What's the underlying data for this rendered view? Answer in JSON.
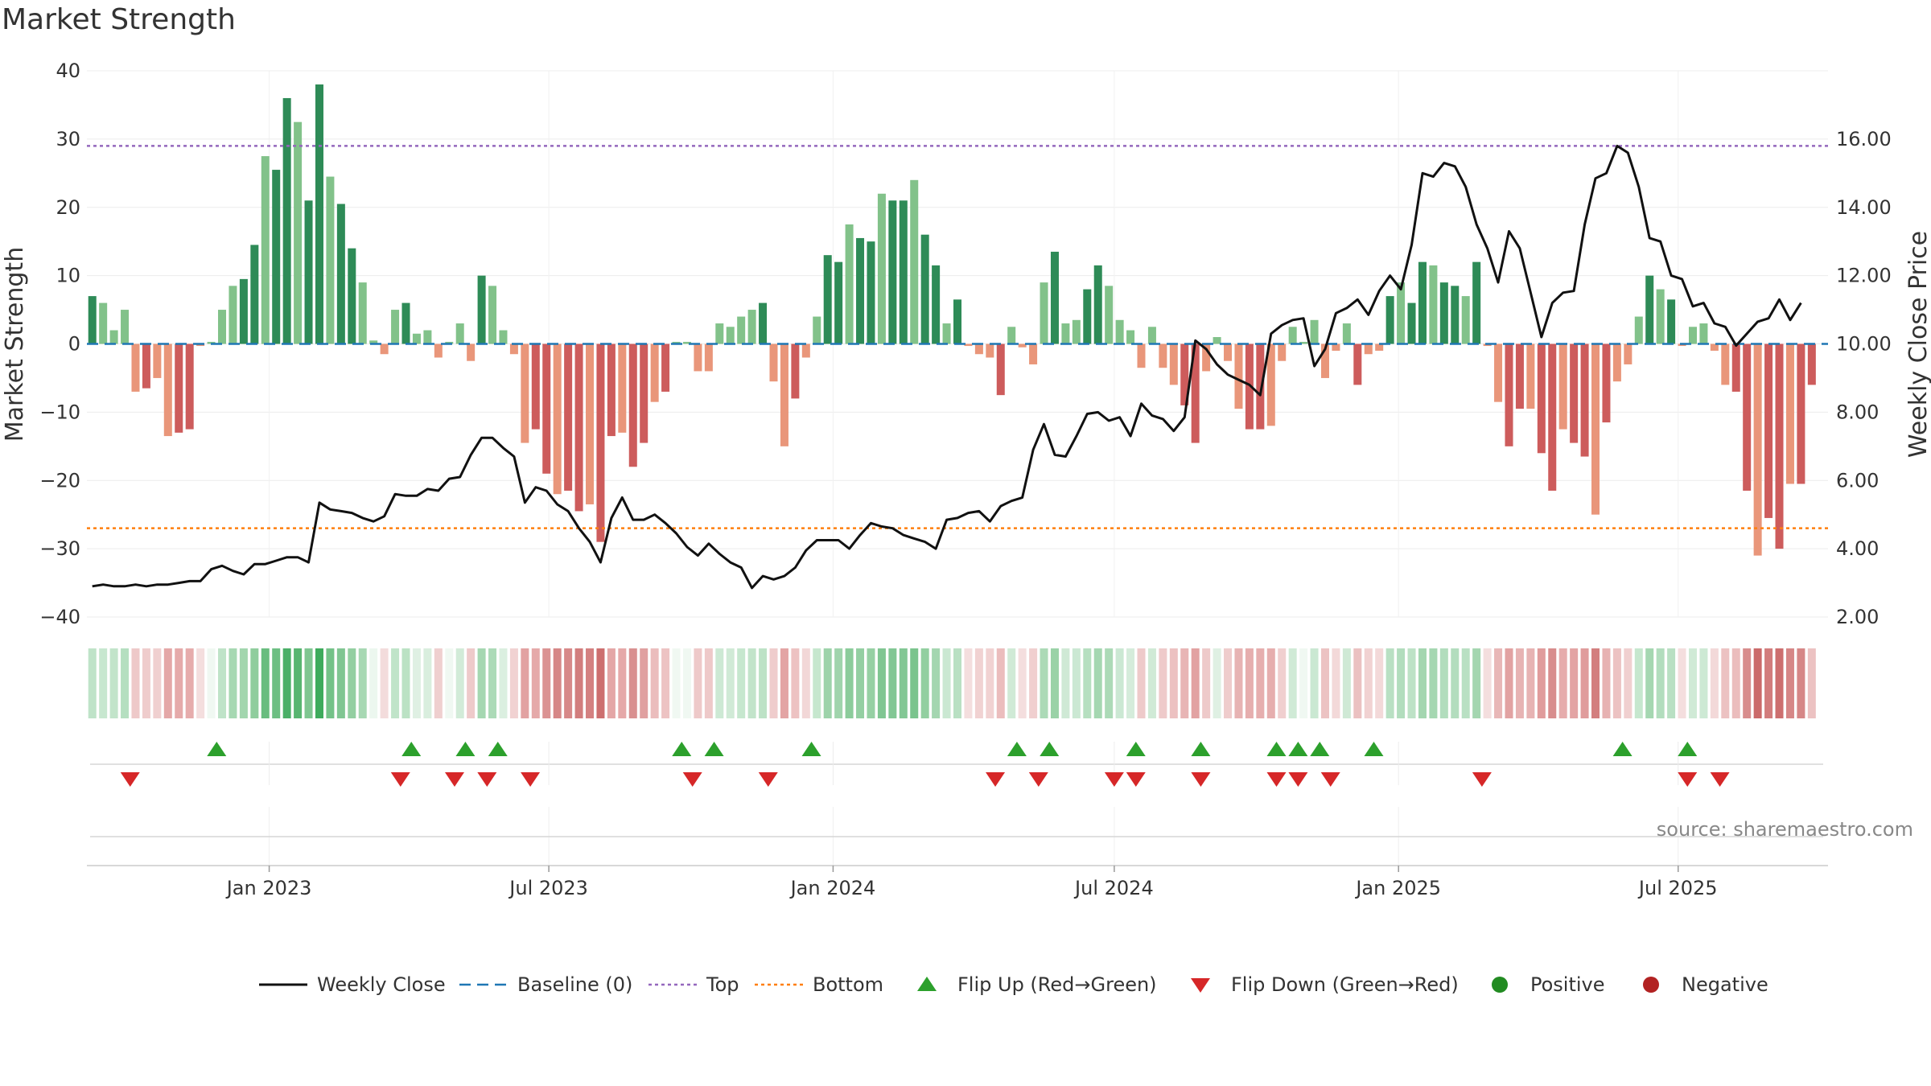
{
  "chart_data": {
    "type": "bar",
    "title": "Market Strength",
    "ylabel": "Market Strength",
    "ylabel_right": "Weekly Close Price",
    "ylim": [
      -40,
      40
    ],
    "ylim_right": [
      2,
      18
    ],
    "y_ticks": [
      40,
      30,
      20,
      10,
      0,
      -10,
      -20,
      -30,
      -40
    ],
    "y_tick_labels": [
      "40",
      "30",
      "20",
      "10",
      "0",
      "−10",
      "−20",
      "−30",
      "−40"
    ],
    "y_right_ticks": [
      16,
      14,
      12,
      10,
      8,
      6,
      4,
      2
    ],
    "y_right_tick_labels": [
      "16.00",
      "14.00",
      "12.00",
      "10.00",
      "8.00",
      "6.00",
      "4.00",
      "2.00"
    ],
    "x_start": "2022-09-05",
    "x_end": "2025-10-06",
    "x_ticks": [
      "2023-01-01",
      "2023-07-01",
      "2024-01-01",
      "2024-07-01",
      "2025-01-01",
      "2025-07-01"
    ],
    "x_tick_labels": [
      "Jan 2023",
      "Jul 2023",
      "Jan 2024",
      "Jul 2024",
      "Jan 2025",
      "Jul 2025"
    ],
    "grid": true,
    "top_line": 29,
    "bottom_line": -27,
    "baseline": 0,
    "source": "source: sharemaestro.com",
    "colors": {
      "pos_dark": "#2e8b57",
      "pos_light": "#82c28a",
      "neg_dark": "#cd5c5c",
      "neg_light": "#e9967a",
      "price_line": "#111111",
      "baseline": "#1f77b4",
      "top": "#9467bd",
      "bottom": "#ff7f0e",
      "flip_up": "#2ca02c",
      "flip_down": "#d62728",
      "positive": "#228b22",
      "negative": "#b22222"
    },
    "strength": [
      7,
      6,
      2,
      5,
      -7,
      -6.5,
      -5,
      -13.5,
      -13,
      -12.5,
      -0.3,
      0.3,
      5,
      8.5,
      9.5,
      14.5,
      27.5,
      25.5,
      36,
      32.5,
      21,
      38,
      24.5,
      20.5,
      14,
      9,
      0.5,
      -1.5,
      5,
      6,
      1.5,
      2,
      -2,
      0.3,
      3,
      -2.5,
      10,
      8.5,
      2,
      -1.5,
      -14.5,
      -12.5,
      -19,
      -22,
      -21.5,
      -24.5,
      -23.5,
      -29,
      -13.5,
      -13,
      -18,
      -14.5,
      -8.5,
      -7,
      0.3,
      0.3,
      -4,
      -4,
      3,
      2.5,
      4,
      5,
      6,
      -5.5,
      -15,
      -8,
      -2,
      4,
      13,
      12,
      17.5,
      15.5,
      15,
      22,
      21,
      21,
      24,
      16,
      11.5,
      3,
      6.5,
      -0.3,
      -1.5,
      -2,
      -7.5,
      2.5,
      -0.5,
      -3,
      9,
      13.5,
      3,
      3.5,
      8,
      11.5,
      8.5,
      3.5,
      2,
      -3.5,
      2.5,
      -3.5,
      -6,
      -9,
      -14.5,
      -4,
      1,
      -2.5,
      -9.5,
      -12.5,
      -12.5,
      -12,
      -2.5,
      2.5,
      0.3,
      3.5,
      -5,
      -1,
      3,
      -6,
      -1.5,
      -1,
      7,
      9,
      6,
      12,
      11.5,
      9,
      8.5,
      7,
      12,
      -0.3,
      -8.5,
      -15,
      -9.5,
      -9.5,
      -16,
      -21.5,
      -12.5,
      -14.5,
      -16.5,
      -25,
      -11.5,
      -5.5,
      -3,
      4,
      10,
      8,
      6.5,
      -0.3,
      2.5,
      3,
      -1,
      -6,
      -7,
      -21.5,
      -31,
      -25.5,
      -30,
      -20.5,
      -20.5,
      -6
    ],
    "close": [
      2.9,
      2.95,
      2.9,
      2.9,
      2.95,
      2.9,
      2.95,
      2.95,
      3.0,
      3.05,
      3.05,
      3.4,
      3.5,
      3.35,
      3.25,
      3.55,
      3.55,
      3.65,
      3.75,
      3.75,
      3.6,
      5.35,
      5.15,
      5.1,
      5.05,
      4.9,
      4.8,
      4.95,
      5.6,
      5.55,
      5.55,
      5.75,
      5.7,
      6.05,
      6.1,
      6.75,
      7.25,
      7.25,
      6.95,
      6.7,
      5.35,
      5.8,
      5.7,
      5.3,
      5.1,
      4.6,
      4.2,
      3.6,
      4.9,
      5.5,
      4.85,
      4.85,
      5.0,
      4.75,
      4.45,
      4.05,
      3.8,
      4.15,
      3.85,
      3.6,
      3.45,
      2.85,
      3.2,
      3.1,
      3.2,
      3.45,
      3.95,
      4.25,
      4.25,
      4.25,
      4.0,
      4.4,
      4.75,
      4.65,
      4.6,
      4.4,
      4.3,
      4.2,
      4.0,
      4.85,
      4.9,
      5.05,
      5.1,
      4.8,
      5.25,
      5.4,
      5.5,
      6.9,
      7.65,
      6.75,
      6.7,
      7.3,
      7.95,
      8.0,
      7.75,
      7.85,
      7.3,
      8.25,
      7.9,
      7.8,
      7.45,
      7.85,
      10.1,
      9.85,
      9.4,
      9.1,
      8.95,
      8.8,
      8.5,
      10.3,
      10.55,
      10.7,
      10.75,
      9.35,
      9.85,
      10.9,
      11.05,
      11.3,
      10.85,
      11.55,
      12.0,
      11.6,
      12.9,
      15.0,
      14.9,
      15.3,
      15.2,
      14.6,
      13.5,
      12.8,
      11.8,
      13.3,
      12.8,
      11.5,
      10.2,
      11.2,
      11.5,
      11.55,
      13.5,
      14.85,
      15.0,
      15.8,
      15.6,
      14.6,
      13.1,
      13.0,
      12.0,
      11.9,
      11.1,
      11.2,
      10.6,
      10.5,
      9.95,
      10.3,
      10.65,
      10.75,
      11.3,
      10.7,
      11.2
    ],
    "heat_colors": [
      "#bfe3c8",
      "#c7e7cf",
      "#c2e4ca",
      "#b5dfc0",
      "#eec9c9",
      "#efcccc",
      "#f0d0d0",
      "#e4a7a7",
      "#e5aaaa",
      "#e6acac",
      "#f4dede",
      "#f0f8f2",
      "#bfe3c8",
      "#a6d8b2",
      "#a2d6ae",
      "#8fcd9d",
      "#69bd7f",
      "#6dbf83",
      "#4aaf67",
      "#58b571",
      "#7fc691",
      "#3eab5c",
      "#74c288",
      "#80c692",
      "#93cfa1",
      "#a7d8b3",
      "#ecf7ef",
      "#f3dcdc",
      "#c0e4c9",
      "#bbe2c4",
      "#dff0e3",
      "#d9eede",
      "#efcfcf",
      "#f0f8f2",
      "#d2ebd8",
      "#eecaca",
      "#a5d7b1",
      "#acdab7",
      "#dbefe0",
      "#f1d2d2",
      "#e2a2a2",
      "#e5a9a9",
      "#db9393",
      "#d68787",
      "#d78989",
      "#d27d7d",
      "#d48181",
      "#cd6f6f",
      "#e4a6a6",
      "#e5a8a8",
      "#d99090",
      "#e0a0a0",
      "#ebbdbd",
      "#edc3c3",
      "#f0f8f2",
      "#f0f8f2",
      "#eec9c9",
      "#eec9c9",
      "#cde9d4",
      "#d0ead6",
      "#c6e7ce",
      "#c2e4ca",
      "#bde2c6",
      "#efcccc",
      "#e3a4a4",
      "#edc2c2",
      "#f2d7d7",
      "#c6e7ce",
      "#9dd3aa",
      "#a0d4ac",
      "#8ccc9b",
      "#94cfa2",
      "#96d0a3",
      "#80c692",
      "#82c794",
      "#82c794",
      "#7ac48d",
      "#92cfa0",
      "#a4d6b0",
      "#cae8d2",
      "#b9e0c3",
      "#f4dede",
      "#f1d2d2",
      "#f1d2d2",
      "#ebbdbd",
      "#d0ead6",
      "#f4dede",
      "#f0cfcf",
      "#acdab7",
      "#9ad2a7",
      "#cfe9d5",
      "#cbe8d3",
      "#b6dfc0",
      "#a5d7b1",
      "#acdab7",
      "#cbe8d3",
      "#d5ecdb",
      "#eecaca",
      "#d0ead6",
      "#eecaca",
      "#ecc1c1",
      "#e8b5b5",
      "#e2a2a2",
      "#eecaca",
      "#dff0e3",
      "#efcccc",
      "#e7b3b3",
      "#e6aeae",
      "#e6aeae",
      "#e6aeae",
      "#f0cfcf",
      "#d0ead6",
      "#f0f8f2",
      "#cae8d2",
      "#ecc3c3",
      "#f3d9d9",
      "#cfe9d5",
      "#ebc1c1",
      "#f1d2d2",
      "#f3d9d9",
      "#b9e0c3",
      "#b2ddbd",
      "#bde2c6",
      "#a4d6b0",
      "#a5d7b1",
      "#b2ddbd",
      "#b3ddbe",
      "#b9e0c3",
      "#a4d6b0",
      "#f4dede",
      "#e8b7b7",
      "#e2a2a2",
      "#e7b3b3",
      "#e7b3b3",
      "#e09c9c",
      "#d88d8d",
      "#e6acac",
      "#e3a4a4",
      "#e09c9c",
      "#d37f7f",
      "#e7b2b2",
      "#ecc2c2",
      "#f0d0d0",
      "#c6e7ce",
      "#a5d7b1",
      "#b2ddbd",
      "#b9e0c3",
      "#f4dede",
      "#d0ead6",
      "#cde9d4",
      "#f3d9d9",
      "#ecc2c2",
      "#ebbdbd",
      "#d88d8d",
      "#cb6a6a",
      "#d27d7d",
      "#cd6f6f",
      "#d68787",
      "#d68787",
      "#ecc2c2"
    ],
    "flip_up_dates": [
      "2022-11-28",
      "2023-04-03",
      "2023-05-08",
      "2023-05-29",
      "2023-09-25",
      "2023-10-16",
      "2023-12-18",
      "2024-04-29",
      "2024-05-20",
      "2024-07-15",
      "2024-08-26",
      "2024-10-14",
      "2024-10-28",
      "2024-11-11",
      "2024-12-16",
      "2025-05-26",
      "2025-07-07"
    ],
    "flip_down_dates": [
      "2022-10-03",
      "2023-03-27",
      "2023-05-01",
      "2023-05-22",
      "2023-06-19",
      "2023-10-02",
      "2023-11-20",
      "2024-04-15",
      "2024-05-13",
      "2024-07-01",
      "2024-07-15",
      "2024-08-26",
      "2024-10-14",
      "2024-10-28",
      "2024-11-18",
      "2025-02-24",
      "2025-07-07",
      "2025-07-28"
    ],
    "legend": [
      {
        "label": "Weekly Close",
        "symbol": "line"
      },
      {
        "label": "Baseline (0)",
        "symbol": "dash"
      },
      {
        "label": "Top",
        "symbol": "dot-purple"
      },
      {
        "label": "Bottom",
        "symbol": "dot-orange"
      },
      {
        "label": "Flip Up (Red→Green)",
        "symbol": "tri-up"
      },
      {
        "label": "Flip Down (Green→Red)",
        "symbol": "tri-down"
      },
      {
        "label": "Positive",
        "symbol": "circle-green"
      },
      {
        "label": "Negative",
        "symbol": "circle-red"
      }
    ]
  }
}
